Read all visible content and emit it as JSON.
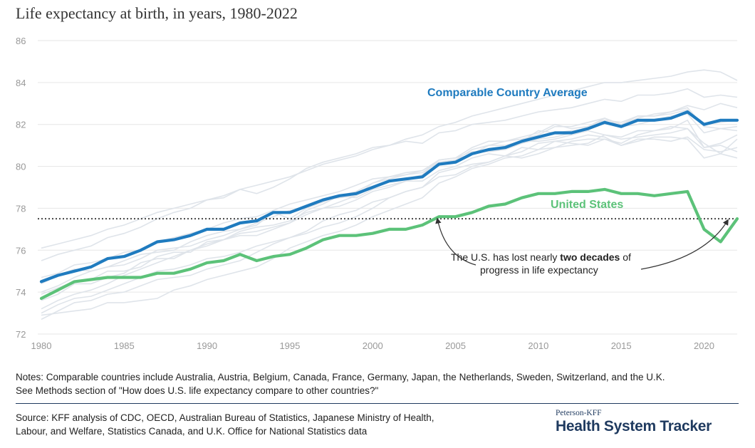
{
  "title": "Life expectancy at birth, in years, 1980-2022",
  "colors": {
    "comparable": "#1f7bbf",
    "united_states": "#5cc279",
    "other_countries": "#dfe4ea",
    "grid": "#e6e6e6",
    "reference_line": "#444444"
  },
  "chart_data": {
    "type": "line",
    "title": "Life expectancy at birth, in years, 1980-2022",
    "xlabel": "",
    "ylabel": "",
    "xlim": [
      1980,
      2022
    ],
    "ylim": [
      72,
      86
    ],
    "x_ticks": [
      1980,
      1985,
      1990,
      1995,
      2000,
      2005,
      2010,
      2015,
      2020
    ],
    "y_ticks": [
      72,
      74,
      76,
      78,
      80,
      82,
      84,
      86
    ],
    "grid": "horizontal",
    "x": [
      1980,
      1981,
      1982,
      1983,
      1984,
      1985,
      1986,
      1987,
      1988,
      1989,
      1990,
      1991,
      1992,
      1993,
      1994,
      1995,
      1996,
      1997,
      1998,
      1999,
      2000,
      2001,
      2002,
      2003,
      2004,
      2005,
      2006,
      2007,
      2008,
      2009,
      2010,
      2011,
      2012,
      2013,
      2014,
      2015,
      2016,
      2017,
      2018,
      2019,
      2020,
      2021,
      2022
    ],
    "series": [
      {
        "name": "Comparable Country Average",
        "color": "#1f7bbf",
        "values": [
          74.5,
          74.8,
          75.0,
          75.2,
          75.6,
          75.7,
          76.0,
          76.4,
          76.5,
          76.7,
          77.0,
          77.0,
          77.3,
          77.4,
          77.8,
          77.8,
          78.1,
          78.4,
          78.6,
          78.7,
          79.0,
          79.3,
          79.4,
          79.5,
          80.1,
          80.2,
          80.6,
          80.8,
          80.9,
          81.2,
          81.4,
          81.6,
          81.6,
          81.8,
          82.1,
          81.9,
          82.2,
          82.2,
          82.3,
          82.6,
          82.0,
          82.2,
          82.2
        ]
      },
      {
        "name": "United States",
        "color": "#5cc279",
        "values": [
          73.7,
          74.1,
          74.5,
          74.6,
          74.7,
          74.7,
          74.7,
          74.9,
          74.9,
          75.1,
          75.4,
          75.5,
          75.8,
          75.5,
          75.7,
          75.8,
          76.1,
          76.5,
          76.7,
          76.7,
          76.8,
          77.0,
          77.0,
          77.2,
          77.6,
          77.6,
          77.8,
          78.1,
          78.2,
          78.5,
          78.7,
          78.7,
          78.8,
          78.8,
          78.9,
          78.7,
          78.7,
          78.6,
          78.7,
          78.8,
          77.0,
          76.4,
          77.5
        ]
      }
    ],
    "reference_line": {
      "y": 77.5,
      "style": "dotted"
    },
    "annotations": [
      {
        "text_before": "The U.S. has lost nearly ",
        "text_bold": "two decades",
        "text_after": " of",
        "text_line2": "progress in life expectancy"
      }
    ]
  },
  "background_countries": [
    [
      76.1,
      76.3,
      76.5,
      76.7,
      77.0,
      77.2,
      77.5,
      77.8,
      78.0,
      78.2,
      78.4,
      78.6,
      78.9,
      79.1,
      79.3,
      79.5,
      79.8,
      80.1,
      80.3,
      80.5,
      80.8,
      81.0,
      81.3,
      81.5,
      81.9,
      82.1,
      82.4,
      82.6,
      82.8,
      83.0,
      83.2,
      83.4,
      83.6,
      83.8,
      84.0,
      84.0,
      84.1,
      84.2,
      84.3,
      84.5,
      84.6,
      84.5,
      84.1
    ],
    [
      75.5,
      75.8,
      76.0,
      76.2,
      76.6,
      76.8,
      77.1,
      77.5,
      77.8,
      78.0,
      78.4,
      78.5,
      78.9,
      78.7,
      79.0,
      79.4,
      79.9,
      80.2,
      80.4,
      80.6,
      80.9,
      81.0,
      81.2,
      81.1,
      81.6,
      81.7,
      82.0,
      82.1,
      82.2,
      82.4,
      82.6,
      82.7,
      82.8,
      83.0,
      83.2,
      83.1,
      83.4,
      83.4,
      83.5,
      83.7,
      83.3,
      83.4,
      83.3
    ],
    [
      74.7,
      74.9,
      75.3,
      75.4,
      75.6,
      75.9,
      76.0,
      76.4,
      76.6,
      76.8,
      77.0,
      77.3,
      77.5,
      77.6,
      77.9,
      78.2,
      78.4,
      78.6,
      78.8,
      79.1,
      79.4,
      79.5,
      79.7,
      79.8,
      80.3,
      80.4,
      80.9,
      81.2,
      81.2,
      81.3,
      81.5,
      81.9,
      81.9,
      82.1,
      82.3,
      82.0,
      82.4,
      82.4,
      82.5,
      82.7,
      82.0,
      82.1,
      82.2
    ],
    [
      74.4,
      74.8,
      75.1,
      75.0,
      75.2,
      75.3,
      75.6,
      76.0,
      76.1,
      76.2,
      76.5,
      76.7,
      77.0,
      77.2,
      77.8,
      77.5,
      78.0,
      78.4,
      78.5,
      78.6,
      79.0,
      79.3,
      79.4,
      79.6,
      80.1,
      80.3,
      80.6,
      80.8,
      80.8,
      81.1,
      81.3,
      81.4,
      81.6,
      81.9,
      82.3,
      82.0,
      82.3,
      82.5,
      82.6,
      82.8,
      81.9,
      81.8,
      81.9
    ],
    [
      74.0,
      74.3,
      74.7,
      75.0,
      75.2,
      75.5,
      75.8,
      75.9,
      76.0,
      76.4,
      76.7,
      76.9,
      77.0,
      77.3,
      77.6,
      77.9,
      78.0,
      78.3,
      78.6,
      78.8,
      79.2,
      79.5,
      79.6,
      79.8,
      80.2,
      80.3,
      80.6,
      81.0,
      81.2,
      81.4,
      81.6,
      82.0,
      81.8,
      81.9,
      82.2,
      82.1,
      82.4,
      82.4,
      82.6,
      82.9,
      82.7,
      83.0,
      82.8
    ],
    [
      73.2,
      73.6,
      73.9,
      74.1,
      74.4,
      74.8,
      75.1,
      75.4,
      75.7,
      76.0,
      76.2,
      76.5,
      76.8,
      76.9,
      77.1,
      77.3,
      77.7,
      78.0,
      78.3,
      78.6,
      79.2,
      79.4,
      79.6,
      79.7,
      80.2,
      80.3,
      80.8,
      81.0,
      81.0,
      81.2,
      81.7,
      81.6,
      81.7,
      81.8,
      82.3,
      81.9,
      82.0,
      82.2,
      82.4,
      82.5,
      81.6,
      81.8,
      81.7
    ],
    [
      73.6,
      73.9,
      74.4,
      74.4,
      74.7,
      74.9,
      75.4,
      75.6,
      75.6,
      76.0,
      76.3,
      76.5,
      76.7,
      76.7,
      77.0,
      77.3,
      77.9,
      78.2,
      78.6,
      78.5,
      78.9,
      79.1,
      79.3,
      79.6,
      80.3,
      80.4,
      80.7,
      80.7,
      80.8,
      81.2,
      81.2,
      81.3,
      81.5,
      81.7,
      81.5,
      81.4,
      81.7,
      81.7,
      81.8,
      82.2,
      80.9,
      81.1,
      81.5
    ],
    [
      73.0,
      73.4,
      73.7,
      73.8,
      74.1,
      74.4,
      74.7,
      75.0,
      75.1,
      75.3,
      75.6,
      75.7,
      75.9,
      76.2,
      76.4,
      76.6,
      76.9,
      77.4,
      77.7,
      77.9,
      78.3,
      78.5,
      78.8,
      79.0,
      79.7,
      79.9,
      80.1,
      80.2,
      80.5,
      80.9,
      80.8,
      80.9,
      81.2,
      81.3,
      81.3,
      81.1,
      81.5,
      81.7,
      81.9,
      81.8,
      81.1,
      80.6,
      81.3
    ],
    [
      72.9,
      73.0,
      73.1,
      73.2,
      73.5,
      73.5,
      73.6,
      73.7,
      74.1,
      74.3,
      74.6,
      74.8,
      75.0,
      75.2,
      75.6,
      76.1,
      76.4,
      76.7,
      76.9,
      77.2,
      77.6,
      77.9,
      78.2,
      78.5,
      79.2,
      79.5,
      79.9,
      80.1,
      80.4,
      80.5,
      80.8,
      81.2,
      81.3,
      81.5,
      81.4,
      81.0,
      81.2,
      81.4,
      81.4,
      81.3,
      80.4,
      80.6,
      80.4
    ],
    [
      72.7,
      73.1,
      73.5,
      73.6,
      73.9,
      74.0,
      74.3,
      74.6,
      74.7,
      74.8,
      75.1,
      75.3,
      75.5,
      75.9,
      76.3,
      76.6,
      76.8,
      77.1,
      77.3,
      77.6,
      78.0,
      78.5,
      78.8,
      79.0,
      79.5,
      79.6,
      80.0,
      80.2,
      80.5,
      80.4,
      80.6,
      80.9,
      81.0,
      81.1,
      81.5,
      81.3,
      81.4,
      81.5,
      81.6,
      81.8,
      80.9,
      81.0,
      80.7
    ],
    [
      73.9,
      74.2,
      74.5,
      74.6,
      75.0,
      75.0,
      75.2,
      75.7,
      75.9,
      75.9,
      76.4,
      76.5,
      76.9,
      77.1,
      77.2,
      77.4,
      77.8,
      78.0,
      78.1,
      78.4,
      78.8,
      79.0,
      79.3,
      79.3,
      79.8,
      80.0,
      80.4,
      80.6,
      80.5,
      80.7,
      81.1,
      81.2,
      81.1,
      81.0,
      81.3,
      81.0,
      81.3,
      81.3,
      81.2,
      81.4,
      80.8,
      80.7,
      80.9
    ]
  ],
  "labels": {
    "comparable": "Comparable Country Average",
    "united_states": "United States",
    "annotation_before": "The U.S. has lost nearly ",
    "annotation_bold": "two decades",
    "annotation_after": " of",
    "annotation_line2": "progress in life expectancy"
  },
  "notes_line1": "Notes: Comparable countries include Australia, Austria, Belgium, Canada, France, Germany, Japan, the Netherlands, Sweden, Switzerland, and the U.K.",
  "notes_line2": "See Methods section of \"How does U.S. life expectancy compare to other countries?\"",
  "source_line1": "Source: KFF analysis of CDC, OECD, Australian Bureau of Statistics, Japanese Ministry of Health,",
  "source_line2": "Labour, and Welfare, Statistics Canada, and U.K. Office for National Statistics data",
  "logo": {
    "top": "Peterson-KFF",
    "main": "Health System Tracker"
  }
}
